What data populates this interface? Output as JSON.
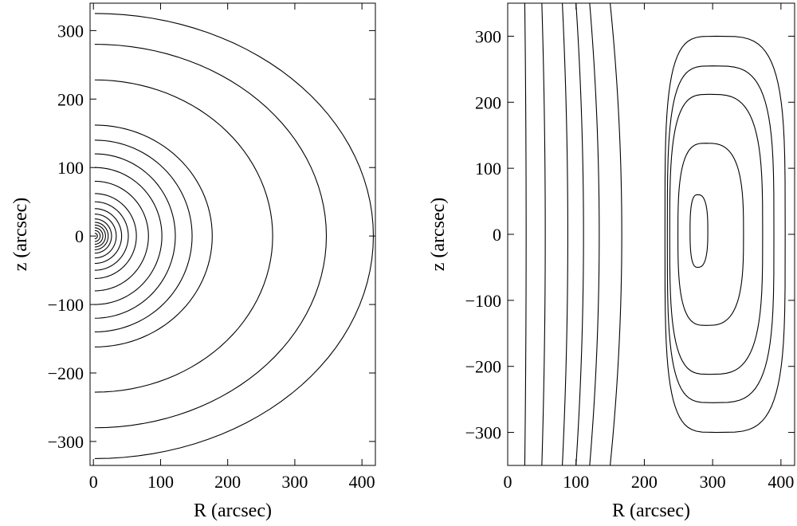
{
  "chart_data": [
    {
      "type": "contour",
      "panel": "left",
      "xlabel": "R   (arcsec)",
      "ylabel": "z  (arcsec)",
      "xlim": [
        -5,
        420
      ],
      "ylim": [
        -335,
        340
      ],
      "xticks": [
        0,
        100,
        200,
        300,
        400
      ],
      "yticks": [
        -300,
        -200,
        -100,
        0,
        100,
        200,
        300
      ],
      "xtick_labels": [
        "0",
        "100",
        "200",
        "300",
        "400"
      ],
      "ytick_labels": [
        "−300",
        "−200",
        "−100",
        "0",
        "100",
        "200",
        "300"
      ],
      "grid": false,
      "contours_R_extent": [
        4,
        8,
        12,
        16,
        20,
        25,
        32,
        40,
        50,
        62,
        80,
        100,
        120,
        145,
        175,
        265,
        345,
        415
      ],
      "contours_z_extent": [
        4,
        8,
        12,
        16,
        20,
        25,
        32,
        40,
        50,
        62,
        80,
        100,
        120,
        140,
        162,
        228,
        280,
        325
      ]
    },
    {
      "type": "contour",
      "panel": "right",
      "xlabel": "R   (arcsec)",
      "ylabel": "z  (arcsec)",
      "xlim": [
        0,
        420
      ],
      "ylim": [
        -350,
        350
      ],
      "xticks": [
        0,
        100,
        200,
        300,
        400
      ],
      "yticks": [
        -300,
        -200,
        -100,
        0,
        100,
        200,
        300
      ],
      "xtick_labels": [
        "0",
        "100",
        "200",
        "300",
        "400"
      ],
      "ytick_labels": [
        "−300",
        "−200",
        "−100",
        "0",
        "100",
        "200",
        "300"
      ],
      "grid": false,
      "vertical_contours_R": [
        25,
        50,
        80,
        100,
        120,
        150
      ],
      "closed_contours": [
        {
          "center_R": 278,
          "center_z": 5,
          "half_width": 13,
          "half_height": 55
        },
        {
          "center_R": 290,
          "center_z": 0,
          "half_width": 48,
          "half_height": 138
        },
        {
          "center_R": 295,
          "center_z": 0,
          "half_width": 68,
          "half_height": 212
        },
        {
          "center_R": 300,
          "center_z": 0,
          "half_width": 78,
          "half_height": 255
        },
        {
          "center_R": 305,
          "center_z": 0,
          "half_width": 88,
          "half_height": 300
        }
      ]
    }
  ]
}
